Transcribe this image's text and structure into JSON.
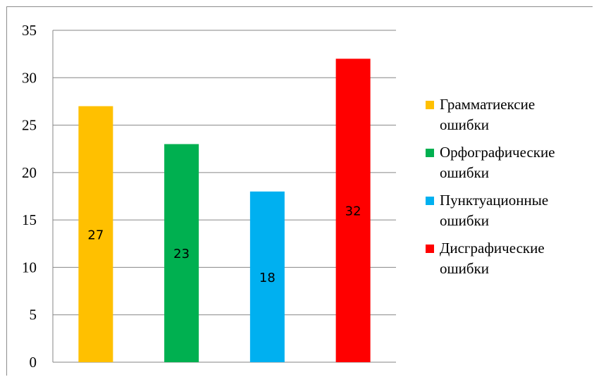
{
  "chart_data": {
    "type": "bar",
    "categories": [
      "Грамматиексие ошибки",
      "Орфографические ошибки",
      "Пунктуационные ошибки",
      "Дисграфические ошибки"
    ],
    "values": [
      27,
      23,
      18,
      32
    ],
    "colors": [
      "#FFC000",
      "#00B050",
      "#00B0F0",
      "#FF0000"
    ],
    "data_labels": [
      "27",
      "23",
      "18",
      "32"
    ],
    "ylim": [
      0,
      35
    ],
    "yticks": [
      0,
      5,
      10,
      15,
      20,
      25,
      30,
      35
    ],
    "ytick_labels": [
      "0",
      "5",
      "10",
      "15",
      "20",
      "25",
      "30",
      "35"
    ],
    "grid": true,
    "legend_position": "right",
    "legend": [
      {
        "lines": [
          "Грамматиексие",
          "ошибки"
        ],
        "color": "#FFC000"
      },
      {
        "lines": [
          "Орфографические",
          "ошибки"
        ],
        "color": "#00B050"
      },
      {
        "lines": [
          "Пунктуационные",
          "ошибки"
        ],
        "color": "#00B0F0"
      },
      {
        "lines": [
          "Дисграфические",
          "ошибки"
        ],
        "color": "#FF0000"
      }
    ],
    "title": "",
    "xlabel": "",
    "ylabel": ""
  }
}
